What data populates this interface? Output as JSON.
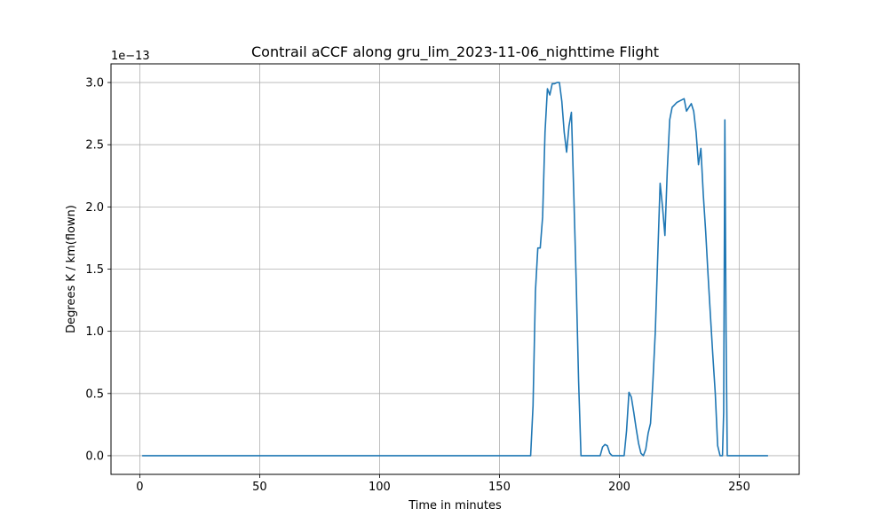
{
  "chart_data": {
    "type": "line",
    "title": "Contrail aCCF along gru_lim_2023-11-06_nighttime Flight",
    "xlabel": "Time in minutes",
    "ylabel": "Degrees K / km(flown)",
    "y_offset_label": "1e−13",
    "xlim": [
      -12,
      275
    ],
    "ylim": [
      -0.15,
      3.15
    ],
    "x_ticks": [
      0,
      50,
      100,
      150,
      200,
      250
    ],
    "x_tick_labels": [
      "0",
      "50",
      "100",
      "150",
      "200",
      "250"
    ],
    "y_ticks": [
      0.0,
      0.5,
      1.0,
      1.5,
      2.0,
      2.5,
      3.0
    ],
    "y_tick_labels": [
      "0.0",
      "0.5",
      "1.0",
      "1.5",
      "2.0",
      "2.5",
      "3.0"
    ],
    "grid": true,
    "series": [
      {
        "color": "#1f77b4",
        "x": [
          1,
          163,
          164,
          165,
          166,
          167,
          168,
          169,
          170,
          171,
          172,
          173,
          174,
          175,
          176,
          177,
          178,
          179,
          180,
          181,
          182,
          183,
          184,
          185,
          186,
          192,
          193,
          194,
          195,
          196,
          197,
          198,
          199,
          200,
          201,
          202,
          203,
          204,
          205,
          206,
          207,
          208,
          209,
          210,
          211,
          212,
          213,
          214,
          215,
          216,
          217,
          218,
          219,
          220,
          221,
          222,
          223,
          224,
          225,
          226,
          227,
          228,
          229,
          230,
          231,
          232,
          233,
          234,
          235,
          236,
          237,
          238,
          239,
          240,
          241,
          242,
          243,
          243.5,
          244,
          244.5,
          245,
          262
        ],
        "y": [
          0.0,
          0.0,
          0.4,
          1.32,
          1.67,
          1.67,
          1.92,
          2.6,
          2.95,
          2.9,
          2.99,
          2.99,
          3.0,
          3.0,
          2.85,
          2.6,
          2.44,
          2.65,
          2.76,
          2.1,
          1.4,
          0.6,
          0.0,
          0.0,
          0.0,
          0.0,
          0.07,
          0.09,
          0.08,
          0.02,
          0.0,
          0.0,
          0.0,
          0.0,
          0.0,
          0.0,
          0.2,
          0.51,
          0.47,
          0.35,
          0.22,
          0.1,
          0.02,
          0.0,
          0.05,
          0.18,
          0.26,
          0.6,
          1.0,
          1.6,
          2.19,
          2.0,
          1.77,
          2.3,
          2.7,
          2.8,
          2.82,
          2.84,
          2.85,
          2.86,
          2.87,
          2.77,
          2.8,
          2.83,
          2.77,
          2.6,
          2.34,
          2.47,
          2.1,
          1.8,
          1.45,
          1.12,
          0.8,
          0.5,
          0.08,
          0.0,
          0.0,
          0.35,
          2.7,
          1.0,
          0.0,
          0.0
        ]
      }
    ]
  }
}
